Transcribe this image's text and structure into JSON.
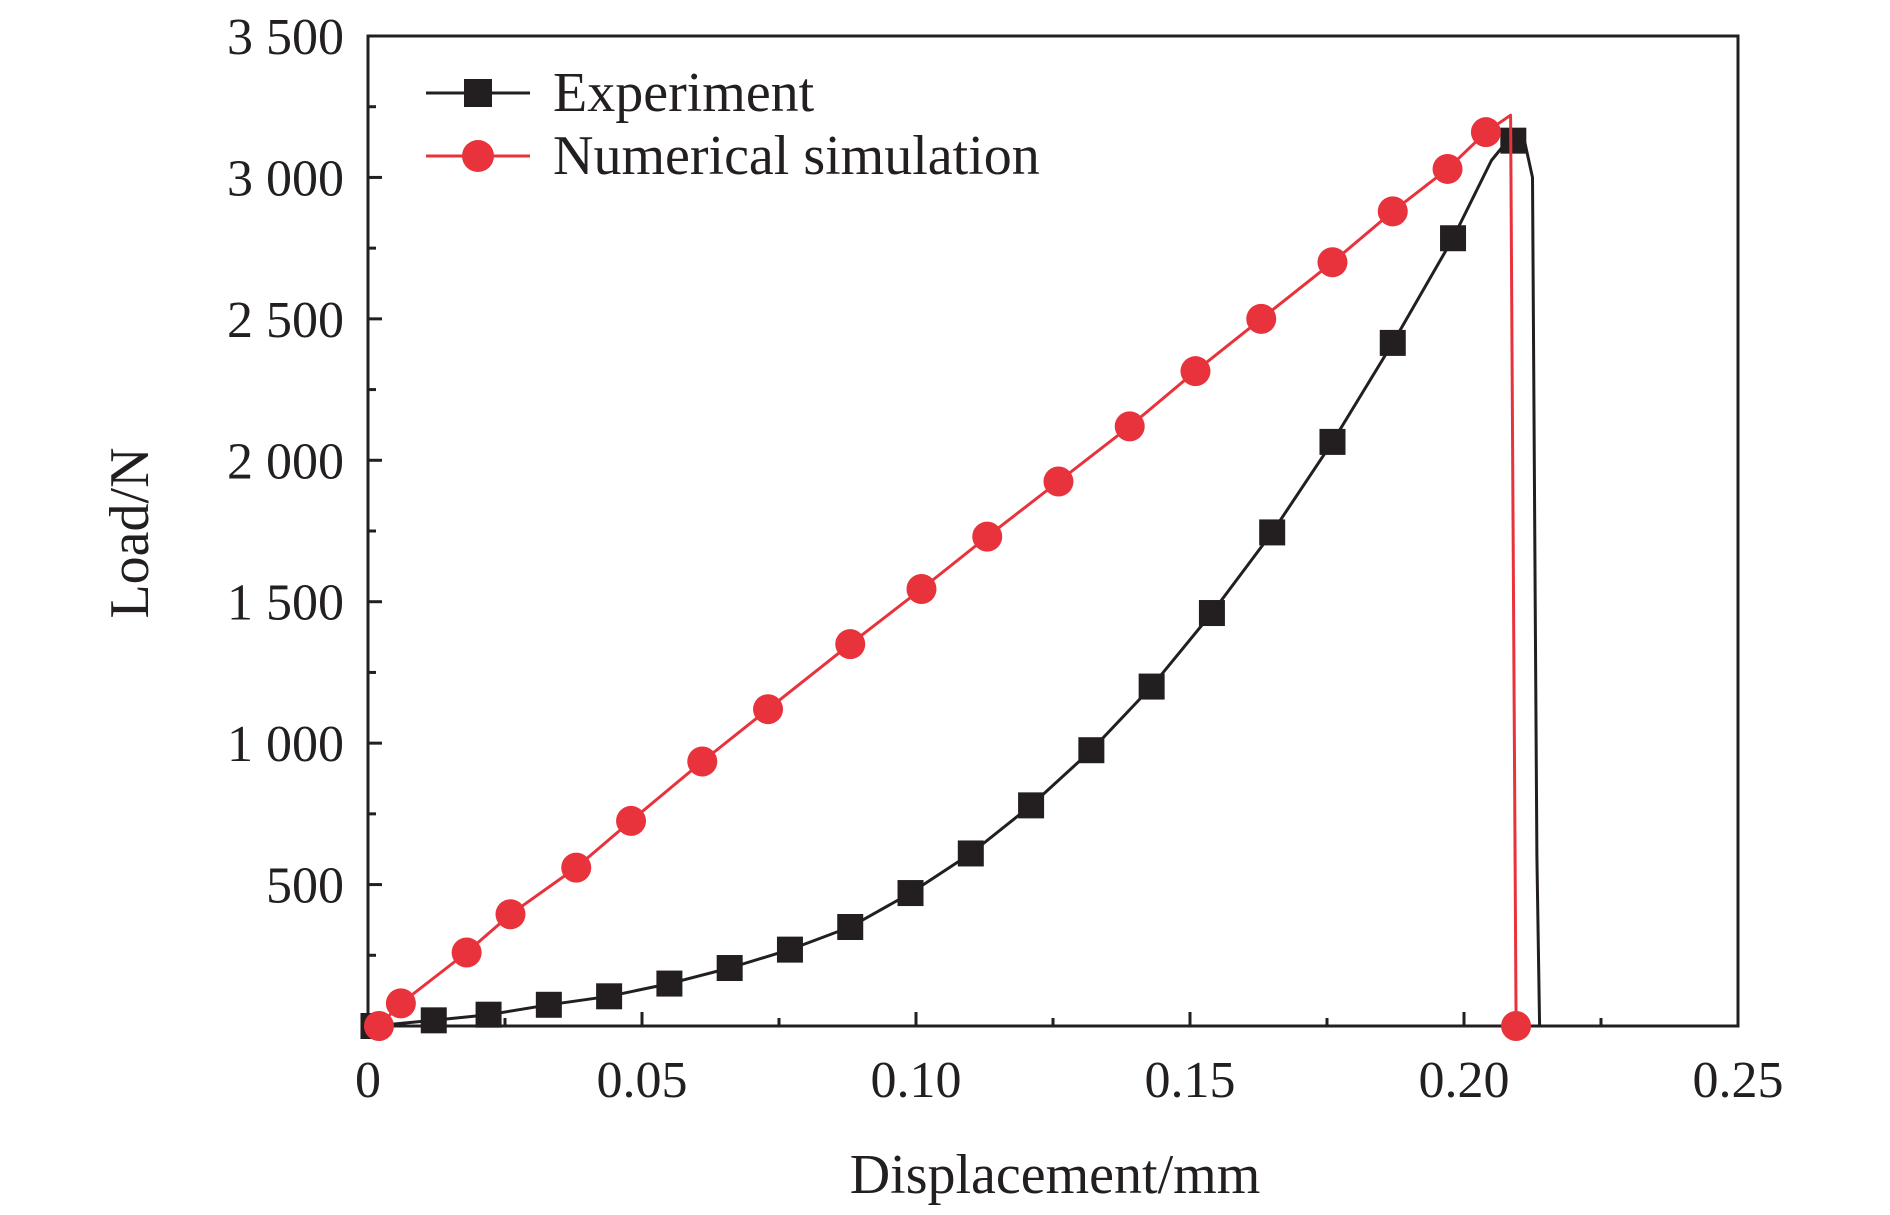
{
  "chart_data": {
    "type": "line",
    "title": "",
    "xlabel": "Displacement/mm",
    "ylabel": "Load/N",
    "xlim": [
      0,
      0.25
    ],
    "ylim": [
      0,
      3500
    ],
    "x_ticks": [
      0,
      0.05,
      0.1,
      0.15,
      0.2,
      0.25
    ],
    "x_tick_labels": [
      "0",
      "0.05",
      "0.10",
      "0.15",
      "0.20",
      "0.25"
    ],
    "y_ticks": [
      500,
      1000,
      1500,
      2000,
      2500,
      3000,
      3500
    ],
    "y_tick_labels": [
      "500",
      "1 000",
      "1 500",
      "2 000",
      "2 500",
      "3 000",
      "3 500"
    ],
    "grid": false,
    "legend_position": "top-left",
    "series": [
      {
        "name": "Experiment",
        "color": "#231f20",
        "marker": "square",
        "line": [
          [
            0.001,
            0
          ],
          [
            0.012,
            20
          ],
          [
            0.022,
            40
          ],
          [
            0.033,
            75
          ],
          [
            0.044,
            105
          ],
          [
            0.055,
            150
          ],
          [
            0.066,
            205
          ],
          [
            0.077,
            270
          ],
          [
            0.088,
            350
          ],
          [
            0.099,
            470
          ],
          [
            0.11,
            610
          ],
          [
            0.121,
            780
          ],
          [
            0.132,
            975
          ],
          [
            0.143,
            1200
          ],
          [
            0.154,
            1460
          ],
          [
            0.165,
            1745
          ],
          [
            0.176,
            2065
          ],
          [
            0.187,
            2415
          ],
          [
            0.198,
            2785
          ],
          [
            0.205,
            3060
          ],
          [
            0.2092,
            3160
          ],
          [
            0.2108,
            3150
          ],
          [
            0.2125,
            3000
          ],
          [
            0.213,
            1500
          ],
          [
            0.2133,
            600
          ],
          [
            0.2138,
            0
          ]
        ],
        "markers": [
          [
            0.001,
            0
          ],
          [
            0.012,
            20
          ],
          [
            0.022,
            40
          ],
          [
            0.033,
            75
          ],
          [
            0.044,
            105
          ],
          [
            0.055,
            150
          ],
          [
            0.066,
            205
          ],
          [
            0.077,
            270
          ],
          [
            0.088,
            350
          ],
          [
            0.099,
            470
          ],
          [
            0.11,
            610
          ],
          [
            0.121,
            780
          ],
          [
            0.132,
            975
          ],
          [
            0.143,
            1200
          ],
          [
            0.154,
            1460
          ],
          [
            0.165,
            1745
          ],
          [
            0.176,
            2065
          ],
          [
            0.187,
            2415
          ],
          [
            0.198,
            2785
          ],
          [
            0.209,
            3130
          ]
        ]
      },
      {
        "name": "Numerical simulation",
        "color": "#e8323c",
        "marker": "circle",
        "line": [
          [
            0.002,
            0
          ],
          [
            0.006,
            80
          ],
          [
            0.018,
            260
          ],
          [
            0.026,
            395
          ],
          [
            0.038,
            560
          ],
          [
            0.048,
            725
          ],
          [
            0.061,
            935
          ],
          [
            0.073,
            1120
          ],
          [
            0.088,
            1350
          ],
          [
            0.101,
            1545
          ],
          [
            0.113,
            1730
          ],
          [
            0.126,
            1925
          ],
          [
            0.139,
            2120
          ],
          [
            0.151,
            2315
          ],
          [
            0.163,
            2500
          ],
          [
            0.176,
            2700
          ],
          [
            0.187,
            2880
          ],
          [
            0.197,
            3030
          ],
          [
            0.204,
            3160
          ],
          [
            0.2085,
            3220
          ],
          [
            0.2095,
            0
          ]
        ],
        "markers": [
          [
            0.002,
            0
          ],
          [
            0.006,
            80
          ],
          [
            0.018,
            260
          ],
          [
            0.026,
            395
          ],
          [
            0.038,
            560
          ],
          [
            0.048,
            725
          ],
          [
            0.061,
            935
          ],
          [
            0.073,
            1120
          ],
          [
            0.088,
            1350
          ],
          [
            0.101,
            1545
          ],
          [
            0.113,
            1730
          ],
          [
            0.126,
            1925
          ],
          [
            0.139,
            2120
          ],
          [
            0.151,
            2315
          ],
          [
            0.163,
            2500
          ],
          [
            0.176,
            2700
          ],
          [
            0.187,
            2880
          ],
          [
            0.197,
            3030
          ],
          [
            0.204,
            3160
          ],
          [
            0.2095,
            0
          ]
        ]
      }
    ]
  }
}
